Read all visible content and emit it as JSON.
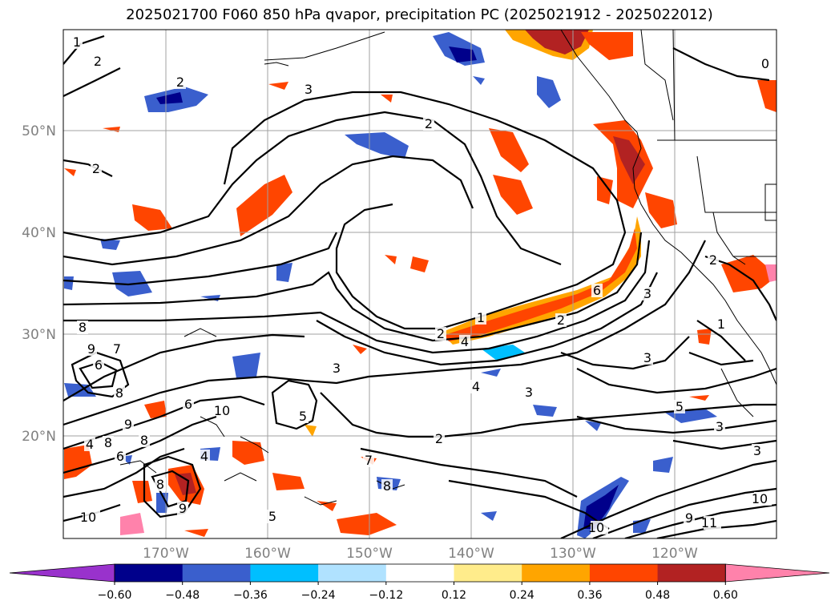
{
  "title": "2025021700 F060 850 hPa qvapor, precipitation PC (2025021912 - 2025022012)",
  "lat_labels": [
    "50°N",
    "40°N",
    "30°N",
    "20°N"
  ],
  "lon_labels": [
    "170°W",
    "160°W",
    "150°W",
    "140°W",
    "130°W",
    "120°W"
  ],
  "colorbar": {
    "tick_labels": [
      "−0.60",
      "−0.48",
      "−0.36",
      "−0.24",
      "−0.12",
      "0.12",
      "0.24",
      "0.36",
      "0.48",
      "0.60"
    ],
    "colors": [
      "#9932cc",
      "#00008b",
      "#3a5fcd",
      "#00bfff",
      "#b0e2ff",
      "#ffffff",
      "#ffec8b",
      "#ffa500",
      "#ff4500",
      "#b22222",
      "#ff82ab"
    ]
  },
  "contour_labels": [
    "1",
    "2",
    "3",
    "2",
    "2",
    "2",
    "8",
    "9",
    "6",
    "8",
    "7",
    "6",
    "10",
    "9",
    "8",
    "8",
    "6",
    "4",
    "10",
    "9",
    "8",
    "5",
    "2",
    "4",
    "1",
    "2",
    "3",
    "4",
    "3",
    "5",
    "2",
    "3",
    "7",
    "8",
    "3",
    "10",
    "11",
    "9",
    "10",
    "3",
    "3",
    "6",
    "2",
    "1",
    "0",
    "5",
    "4"
  ],
  "shading_colors": {
    "dark_red": "#b22222",
    "orange_red": "#ff4500",
    "orange": "#ffa500",
    "yellow": "#ffec8b",
    "pink": "#ff82ab",
    "navy": "#00008b",
    "blue": "#3a5fcd",
    "sky": "#00bfff",
    "light_blue": "#b0e2ff"
  }
}
